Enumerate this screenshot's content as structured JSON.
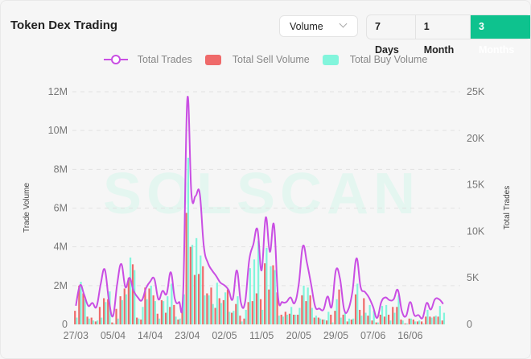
{
  "header": {
    "title": "Token Dex Trading",
    "metric_select": "Volume",
    "ranges": [
      "7 Days",
      "1 Month",
      "3 Months"
    ],
    "active_range": "3 Months"
  },
  "watermark": "SOLSCAN",
  "chart_data": {
    "type": "bar+line",
    "legend": [
      "Total Trades",
      "Total Sell Volume",
      "Total Buy Volume"
    ],
    "legend_position": "top-center",
    "colors": {
      "trades": "#c94ee3",
      "sell": "#ef6a6a",
      "buy": "#82f5dc"
    },
    "ylabel": "Trade Volume",
    "y2label": "Total Trades",
    "ylim": [
      0,
      12000000
    ],
    "y2lim": [
      0,
      25000
    ],
    "y_ticks": [
      "0",
      "2M",
      "4M",
      "6M",
      "8M",
      "10M",
      "12M"
    ],
    "y2_ticks": [
      "0",
      "5K",
      "10K",
      "15K",
      "20K",
      "25K"
    ],
    "x_ticks": [
      {
        "i": 0,
        "label": "27/03"
      },
      {
        "i": 9,
        "label": "05/04"
      },
      {
        "i": 18,
        "label": "14/04"
      },
      {
        "i": 27,
        "label": "23/04"
      },
      {
        "i": 36,
        "label": "02/05"
      },
      {
        "i": 45,
        "label": "11/05"
      },
      {
        "i": 54,
        "label": "20/05"
      },
      {
        "i": 63,
        "label": "29/05"
      },
      {
        "i": 72,
        "label": "07/06"
      },
      {
        "i": 81,
        "label": "16/06"
      }
    ],
    "grid": true,
    "sell_M": [
      0.7,
      2.0,
      1.6,
      0.4,
      0.35,
      0.15,
      0.9,
      1.35,
      1.3,
      0.1,
      0.8,
      1.45,
      1.85,
      2.4,
      3.1,
      0.35,
      0.25,
      1.9,
      1.85,
      1.5,
      0.55,
      1.25,
      0.6,
      0.9,
      1.0,
      0.25,
      0.8,
      5.75,
      4.0,
      2.55,
      2.6,
      3.0,
      1.6,
      1.9,
      0.85,
      1.35,
      1.25,
      1.8,
      0.6,
      1.05,
      0.45,
      0.3,
      1.15,
      1.2,
      1.6,
      1.3,
      3.15,
      1.8,
      3.05,
      1.65,
      0.5,
      0.65,
      0.55,
      0.5,
      0.5,
      1.5,
      1.2,
      1.5,
      0.35,
      0.35,
      0.25,
      0.2,
      0.5,
      0.7,
      1.8,
      0.5,
      0.15,
      0.25,
      1.55,
      0.75,
      1.35,
      0.45,
      0.2,
      0.1,
      0.5,
      0.4,
      0.5,
      0.9,
      0.9,
      0.25,
      0.05,
      0.3,
      0.25,
      0.15,
      0.15,
      0.4,
      0.4,
      0.4,
      0.4,
      0.2
    ],
    "buy_M": [
      0.35,
      2.2,
      1.3,
      0.3,
      0.2,
      0.2,
      0.35,
      1.15,
      1.7,
      0.05,
      0.3,
      1.25,
      1.55,
      3.45,
      2.8,
      0.3,
      0.9,
      1.3,
      2.0,
      1.2,
      0.3,
      1.2,
      1.45,
      2.1,
      0.4,
      0.3,
      1.55,
      8.6,
      4.1,
      4.45,
      3.55,
      1.5,
      1.5,
      1.05,
      2.15,
      1.1,
      1.65,
      0.65,
      0.7,
      1.45,
      0.15,
      0.75,
      2.9,
      3.35,
      4.3,
      0.75,
      3.95,
      3.0,
      2.8,
      0.45,
      0.4,
      0.5,
      0.9,
      0.5,
      0.85,
      2.0,
      1.9,
      0.85,
      0.45,
      0.3,
      0.25,
      0.65,
      0.1,
      1.3,
      0.35,
      0.6,
      0.3,
      0.3,
      2.1,
      0.45,
      0.6,
      1.0,
      0.7,
      0.1,
      0.95,
      1.0,
      0.2,
      0.6,
      1.5,
      0.2,
      0.05,
      0.3,
      0.15,
      0.2,
      0.05,
      0.75,
      0.35,
      0.45,
      0.95,
      0.6
    ],
    "trades_K": [
      2.0,
      4.2,
      3.2,
      2.0,
      2.3,
      1.9,
      4.3,
      5.9,
      2.6,
      0.9,
      4.3,
      6.5,
      4.0,
      5.0,
      3.6,
      2.9,
      2.6,
      3.9,
      4.6,
      4.9,
      2.7,
      3.6,
      3.3,
      5.6,
      2.7,
      2.4,
      3.5,
      24.2,
      14.0,
      13.8,
      14.1,
      8.4,
      6.6,
      5.8,
      5.2,
      4.5,
      4.2,
      3.7,
      2.7,
      5.8,
      2.3,
      2.4,
      6.9,
      8.6,
      10.2,
      5.8,
      11.5,
      7.8,
      10.7,
      2.9,
      2.4,
      2.4,
      2.9,
      2.3,
      4.3,
      8.4,
      6.6,
      4.3,
      1.9,
      1.7,
      1.6,
      3.0,
      1.9,
      5.8,
      4.9,
      1.6,
      1.6,
      3.5,
      7.1,
      4.0,
      3.5,
      2.9,
      1.9,
      0.7,
      2.4,
      2.9,
      2.6,
      2.7,
      3.7,
      1.4,
      0.9,
      2.4,
      1.0,
      1.0,
      0.7,
      2.3,
      1.6,
      2.7,
      2.7,
      2.2
    ]
  }
}
